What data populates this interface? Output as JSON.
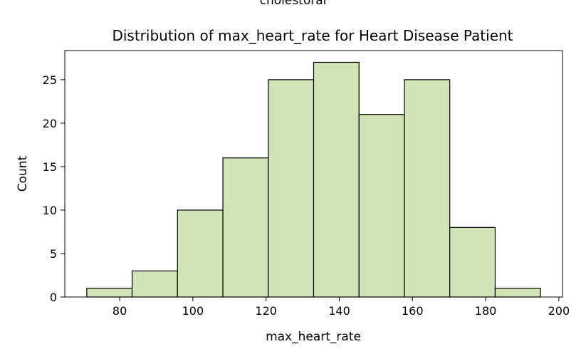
{
  "cut_label": "cholestoral",
  "chart_data": {
    "type": "bar",
    "title": "Distribution of max_heart_rate for Heart Disease Patient",
    "xlabel": "max_heart_rate",
    "ylabel": "Count",
    "bin_edges": [
      71,
      83.4,
      95.8,
      108.2,
      120.6,
      133,
      145.4,
      157.8,
      170.2,
      182.6,
      195
    ],
    "values": [
      1,
      3,
      10,
      16,
      25,
      27,
      21,
      25,
      8,
      1
    ],
    "xlim": [
      65,
      201
    ],
    "ylim": [
      0,
      28.35
    ],
    "xticks": [
      80,
      100,
      120,
      140,
      160,
      180,
      200
    ],
    "yticks": [
      0,
      5,
      10,
      15,
      20,
      25
    ],
    "grid": false,
    "colors": {
      "bar_fill": "#d2e3b5",
      "bar_edge": "#000000"
    }
  }
}
